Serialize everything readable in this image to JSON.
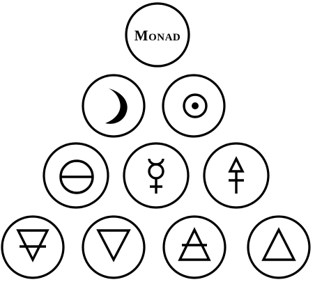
{
  "diagram": {
    "rows": [
      [
        {
          "id": "monad",
          "kind": "text",
          "label": "Monad"
        }
      ],
      [
        {
          "id": "moon",
          "kind": "icon",
          "icon": "crescent-moon-icon"
        },
        {
          "id": "sun",
          "kind": "icon",
          "icon": "sun-circumpunct-icon"
        }
      ],
      [
        {
          "id": "salt",
          "kind": "icon",
          "icon": "salt-icon"
        },
        {
          "id": "mercury",
          "kind": "icon",
          "icon": "mercury-icon"
        },
        {
          "id": "sulfur",
          "kind": "icon",
          "icon": "sulfur-icon"
        }
      ],
      [
        {
          "id": "earth",
          "kind": "icon",
          "icon": "earth-element-icon"
        },
        {
          "id": "water",
          "kind": "icon",
          "icon": "water-element-icon"
        },
        {
          "id": "air",
          "kind": "icon",
          "icon": "air-element-icon"
        },
        {
          "id": "fire",
          "kind": "icon",
          "icon": "fire-element-icon"
        }
      ]
    ],
    "colors": {
      "stroke": "#000000",
      "background": "#ffffff"
    }
  }
}
